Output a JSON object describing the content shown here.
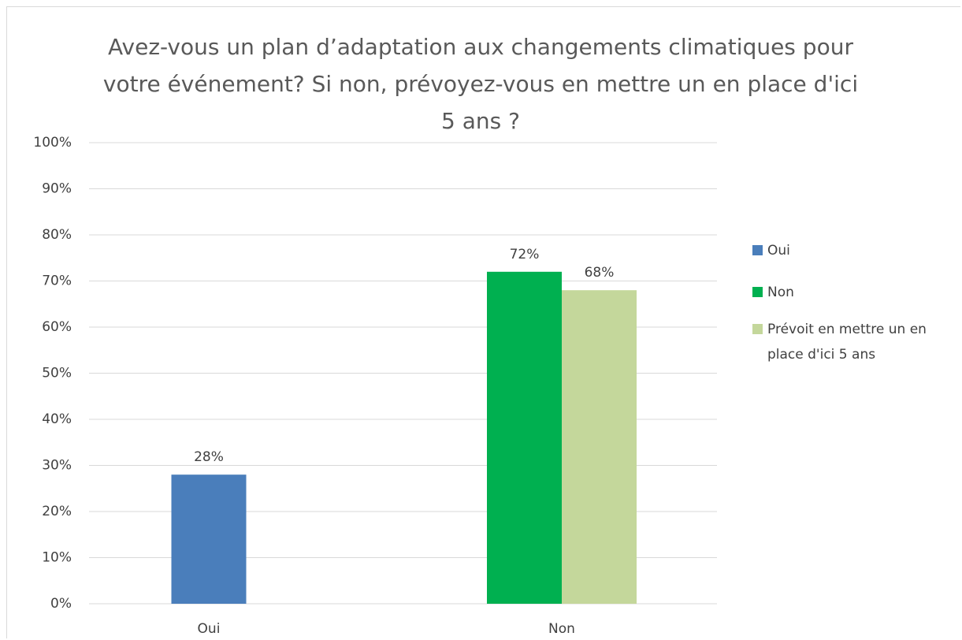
{
  "chart_data": {
    "type": "bar",
    "title": "Avez-vous un plan d’adaptation aux changements climatiques pour votre événement? Si non, prévoyez-vous en mettre un en place d'ici 5 ans ?",
    "categories": [
      "Oui",
      "Non"
    ],
    "series": [
      {
        "name": "Oui",
        "color": "#4a7ebb",
        "values": [
          28,
          null
        ],
        "value_labels": [
          "28%",
          null
        ]
      },
      {
        "name": "Non",
        "color": "#00b050",
        "values": [
          null,
          72
        ],
        "value_labels": [
          null,
          "72%"
        ]
      },
      {
        "name": "Prévoit en mettre un en place d'ici 5 ans",
        "color": "#c4d79b",
        "values": [
          null,
          68
        ],
        "value_labels": [
          null,
          "68%"
        ]
      }
    ],
    "ylim": [
      0,
      100
    ],
    "yticks": [
      {
        "value": 0,
        "label": "0%"
      },
      {
        "value": 10,
        "label": "10%"
      },
      {
        "value": 20,
        "label": "20%"
      },
      {
        "value": 30,
        "label": "30%"
      },
      {
        "value": 40,
        "label": "40%"
      },
      {
        "value": 50,
        "label": "50%"
      },
      {
        "value": 60,
        "label": "60%"
      },
      {
        "value": 70,
        "label": "70%"
      },
      {
        "value": 80,
        "label": "80%"
      },
      {
        "value": 90,
        "label": "90%"
      },
      {
        "value": 100,
        "label": "100%"
      }
    ],
    "grid": true,
    "legend": "right"
  }
}
